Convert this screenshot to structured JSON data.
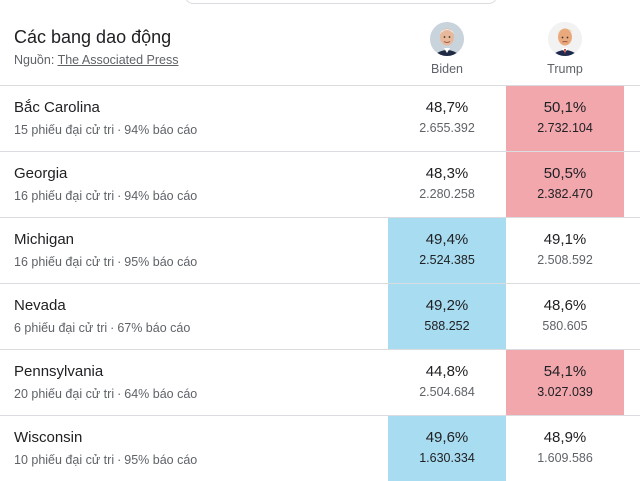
{
  "header": {
    "title": "Các bang dao động",
    "source_label": "Nguồn:",
    "source_link": "The Associated Press"
  },
  "candidates": [
    {
      "name": "Biden",
      "icon": "biden-avatar"
    },
    {
      "name": "Trump",
      "icon": "trump-avatar"
    }
  ],
  "colors": {
    "biden_win": "#a8dcf0",
    "trump_win": "#f2a7ad"
  },
  "states": [
    {
      "name": "Bắc Carolina",
      "electoral": "15 phiếu đại cử tri",
      "reporting": "94% báo cáo",
      "biden_pct": "48,7%",
      "biden_votes": "2.655.392",
      "trump_pct": "50,1%",
      "trump_votes": "2.732.104",
      "leader": "trump"
    },
    {
      "name": "Georgia",
      "electoral": "16 phiếu đại cử tri",
      "reporting": "94% báo cáo",
      "biden_pct": "48,3%",
      "biden_votes": "2.280.258",
      "trump_pct": "50,5%",
      "trump_votes": "2.382.470",
      "leader": "trump"
    },
    {
      "name": "Michigan",
      "electoral": "16 phiếu đại cử tri",
      "reporting": "95% báo cáo",
      "biden_pct": "49,4%",
      "biden_votes": "2.524.385",
      "trump_pct": "49,1%",
      "trump_votes": "2.508.592",
      "leader": "biden"
    },
    {
      "name": "Nevada",
      "electoral": "6 phiếu đại cử tri",
      "reporting": "67% báo cáo",
      "biden_pct": "49,2%",
      "biden_votes": "588.252",
      "trump_pct": "48,6%",
      "trump_votes": "580.605",
      "leader": "biden"
    },
    {
      "name": "Pennsylvania",
      "electoral": "20 phiếu đại cử tri",
      "reporting": "64% báo cáo",
      "biden_pct": "44,8%",
      "biden_votes": "2.504.684",
      "trump_pct": "54,1%",
      "trump_votes": "3.027.039",
      "leader": "trump"
    },
    {
      "name": "Wisconsin",
      "electoral": "10 phiếu đại cử tri",
      "reporting": "95% báo cáo",
      "biden_pct": "49,6%",
      "biden_votes": "1.630.334",
      "trump_pct": "48,9%",
      "trump_votes": "1.609.586",
      "leader": "biden"
    }
  ]
}
